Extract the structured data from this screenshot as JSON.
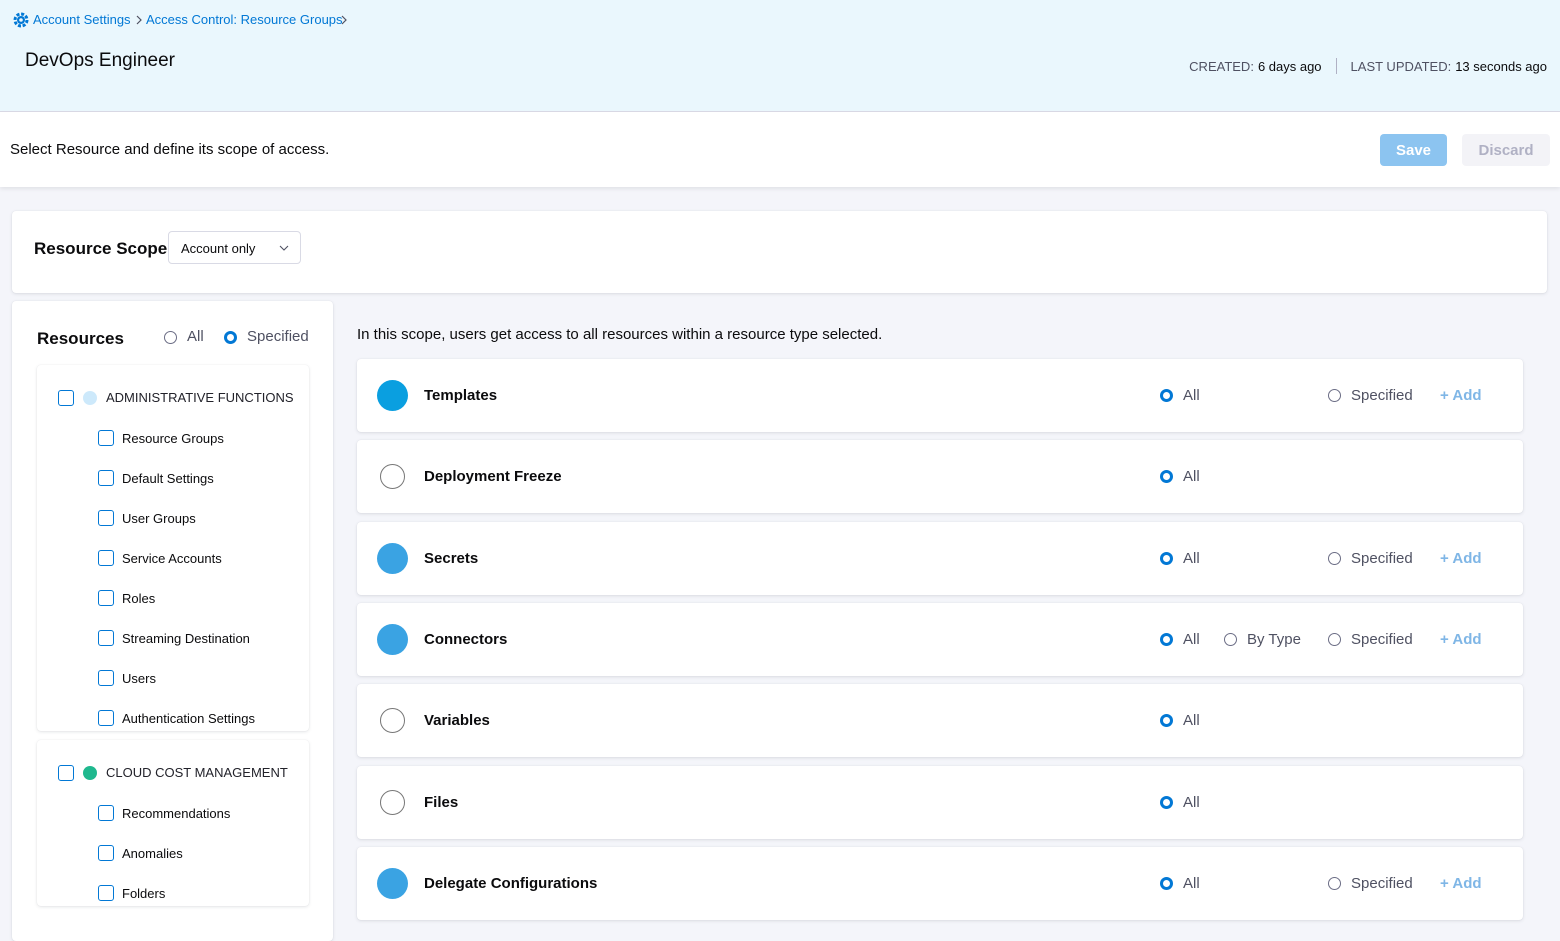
{
  "breadcrumbs": [
    "Account Settings",
    "Access Control: Resource Groups"
  ],
  "header": {
    "title": "DevOps Engineer",
    "created_label": "CREATED:",
    "created": "6 days ago",
    "updated_label": "LAST UPDATED:",
    "updated": "13 seconds ago"
  },
  "toolbar": {
    "instruction": "Select Resource and define its scope of access.",
    "save": "Save",
    "discard": "Discard"
  },
  "scope": {
    "label": "Resource Scope",
    "value": "Account only"
  },
  "resources": {
    "title": "Resources",
    "options": [
      {
        "label": "All",
        "checked": false
      },
      {
        "label": "Specified",
        "checked": true
      }
    ],
    "groups": [
      {
        "name": "ADMINISTRATIVE FUNCTIONS",
        "items": [
          "Resource Groups",
          "Default Settings",
          "User Groups",
          "Service Accounts",
          "Roles",
          "Streaming Destination",
          "Users",
          "Authentication Settings"
        ]
      },
      {
        "name": "CLOUD COST MANAGEMENT",
        "items": [
          "Recommendations",
          "Anomalies",
          "Folders"
        ]
      }
    ]
  },
  "detail": {
    "note": "In this scope, users get access to all resources within a resource type selected.",
    "rows": [
      {
        "name": "Templates",
        "options": [
          {
            "label": "All",
            "checked": true
          },
          {
            "label": "Specified",
            "checked": false
          }
        ],
        "add": "+ Add"
      },
      {
        "name": "Deployment Freeze",
        "options": [
          {
            "label": "All",
            "checked": true
          }
        ]
      },
      {
        "name": "Secrets",
        "options": [
          {
            "label": "All",
            "checked": true
          },
          {
            "label": "Specified",
            "checked": false
          }
        ],
        "add": "+ Add"
      },
      {
        "name": "Connectors",
        "options": [
          {
            "label": "All",
            "checked": true
          },
          {
            "label": "By Type",
            "checked": false
          },
          {
            "label": "Specified",
            "checked": false
          }
        ],
        "add": "+ Add"
      },
      {
        "name": "Variables",
        "options": [
          {
            "label": "All",
            "checked": true
          }
        ]
      },
      {
        "name": "Files",
        "options": [
          {
            "label": "All",
            "checked": true
          }
        ]
      },
      {
        "name": "Delegate Configurations",
        "options": [
          {
            "label": "All",
            "checked": true
          },
          {
            "label": "Specified",
            "checked": false
          }
        ],
        "add": "+ Add"
      }
    ]
  }
}
